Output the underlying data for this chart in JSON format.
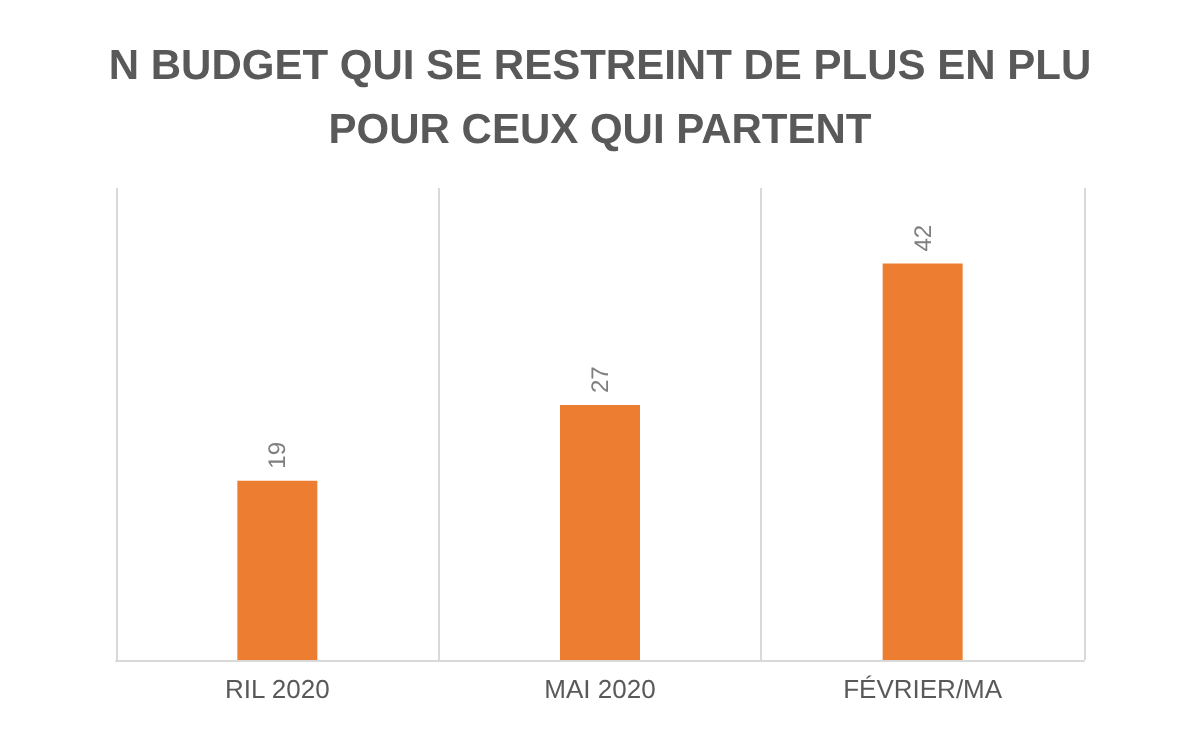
{
  "chart_data": {
    "type": "bar",
    "title": "N BUDGET QUI SE RESTREINT DE PLUS EN PLU\nPOUR CEUX QUI PARTENT",
    "categories": [
      "RIL 2020",
      "MAI 2020",
      "FÉVRIER/MA"
    ],
    "values": [
      19,
      27,
      42
    ],
    "color": "#ed7d31",
    "data_labels": true,
    "grid": "x"
  }
}
